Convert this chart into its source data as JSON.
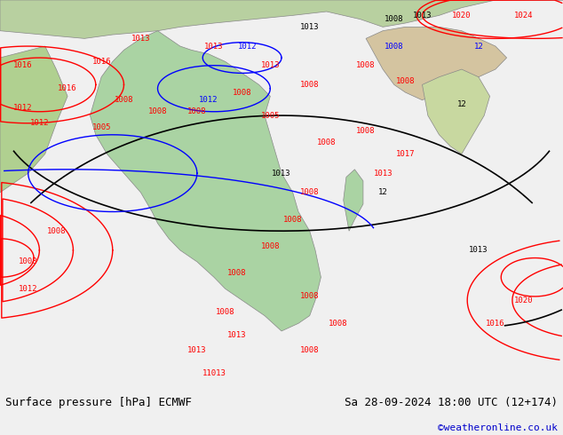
{
  "title_left": "Surface pressure [hPa] ECMWF",
  "title_right": "Sa 28-09-2024 18:00 UTC (12+174)",
  "credit": "©weatheronline.co.uk",
  "bg_color": "#e8e8e8",
  "map_bg_color": "#aad3a3",
  "ocean_color": "#c8daf0",
  "footer_bg": "#f0f0f0",
  "figsize": [
    6.34,
    4.9
  ],
  "dpi": 100
}
